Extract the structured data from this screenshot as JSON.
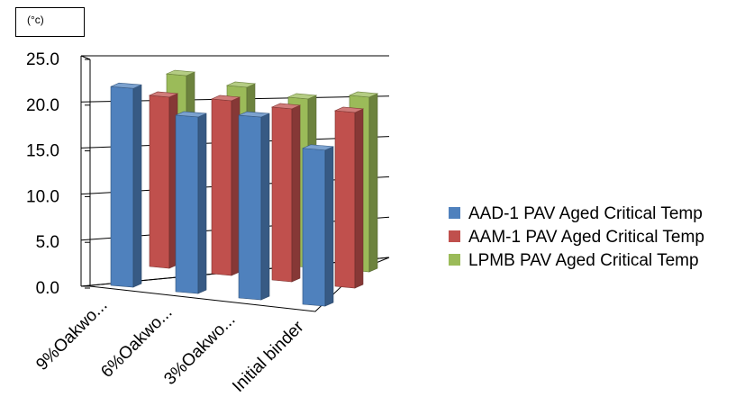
{
  "chart_data": {
    "type": "bar",
    "unit_label": "(°c)",
    "categories": [
      "9%Oakwo...",
      "6%Oakwo...",
      "3%Oakwo...",
      "Initial binder"
    ],
    "series": [
      {
        "name": "AAD-1 PAV Aged Critical Temp",
        "values": [
          22.3,
          19.8,
          20.5,
          17.5
        ],
        "color": "#4f81bd"
      },
      {
        "name": "AAM-1 PAV Aged Critical Temp",
        "values": [
          19.2,
          19.6,
          19.4,
          19.7
        ],
        "color": "#c0504d"
      },
      {
        "name": "LPMB PAV Aged Critical Temp",
        "values": [
          20.3,
          19.7,
          18.9,
          19.6
        ],
        "color": "#9bbb59"
      }
    ],
    "y_ticks": [
      "0.0",
      "5.0",
      "10.0",
      "15.0",
      "20.0",
      "25.0"
    ],
    "ylim": [
      0,
      25
    ],
    "grid": true,
    "legend_position": "right"
  }
}
